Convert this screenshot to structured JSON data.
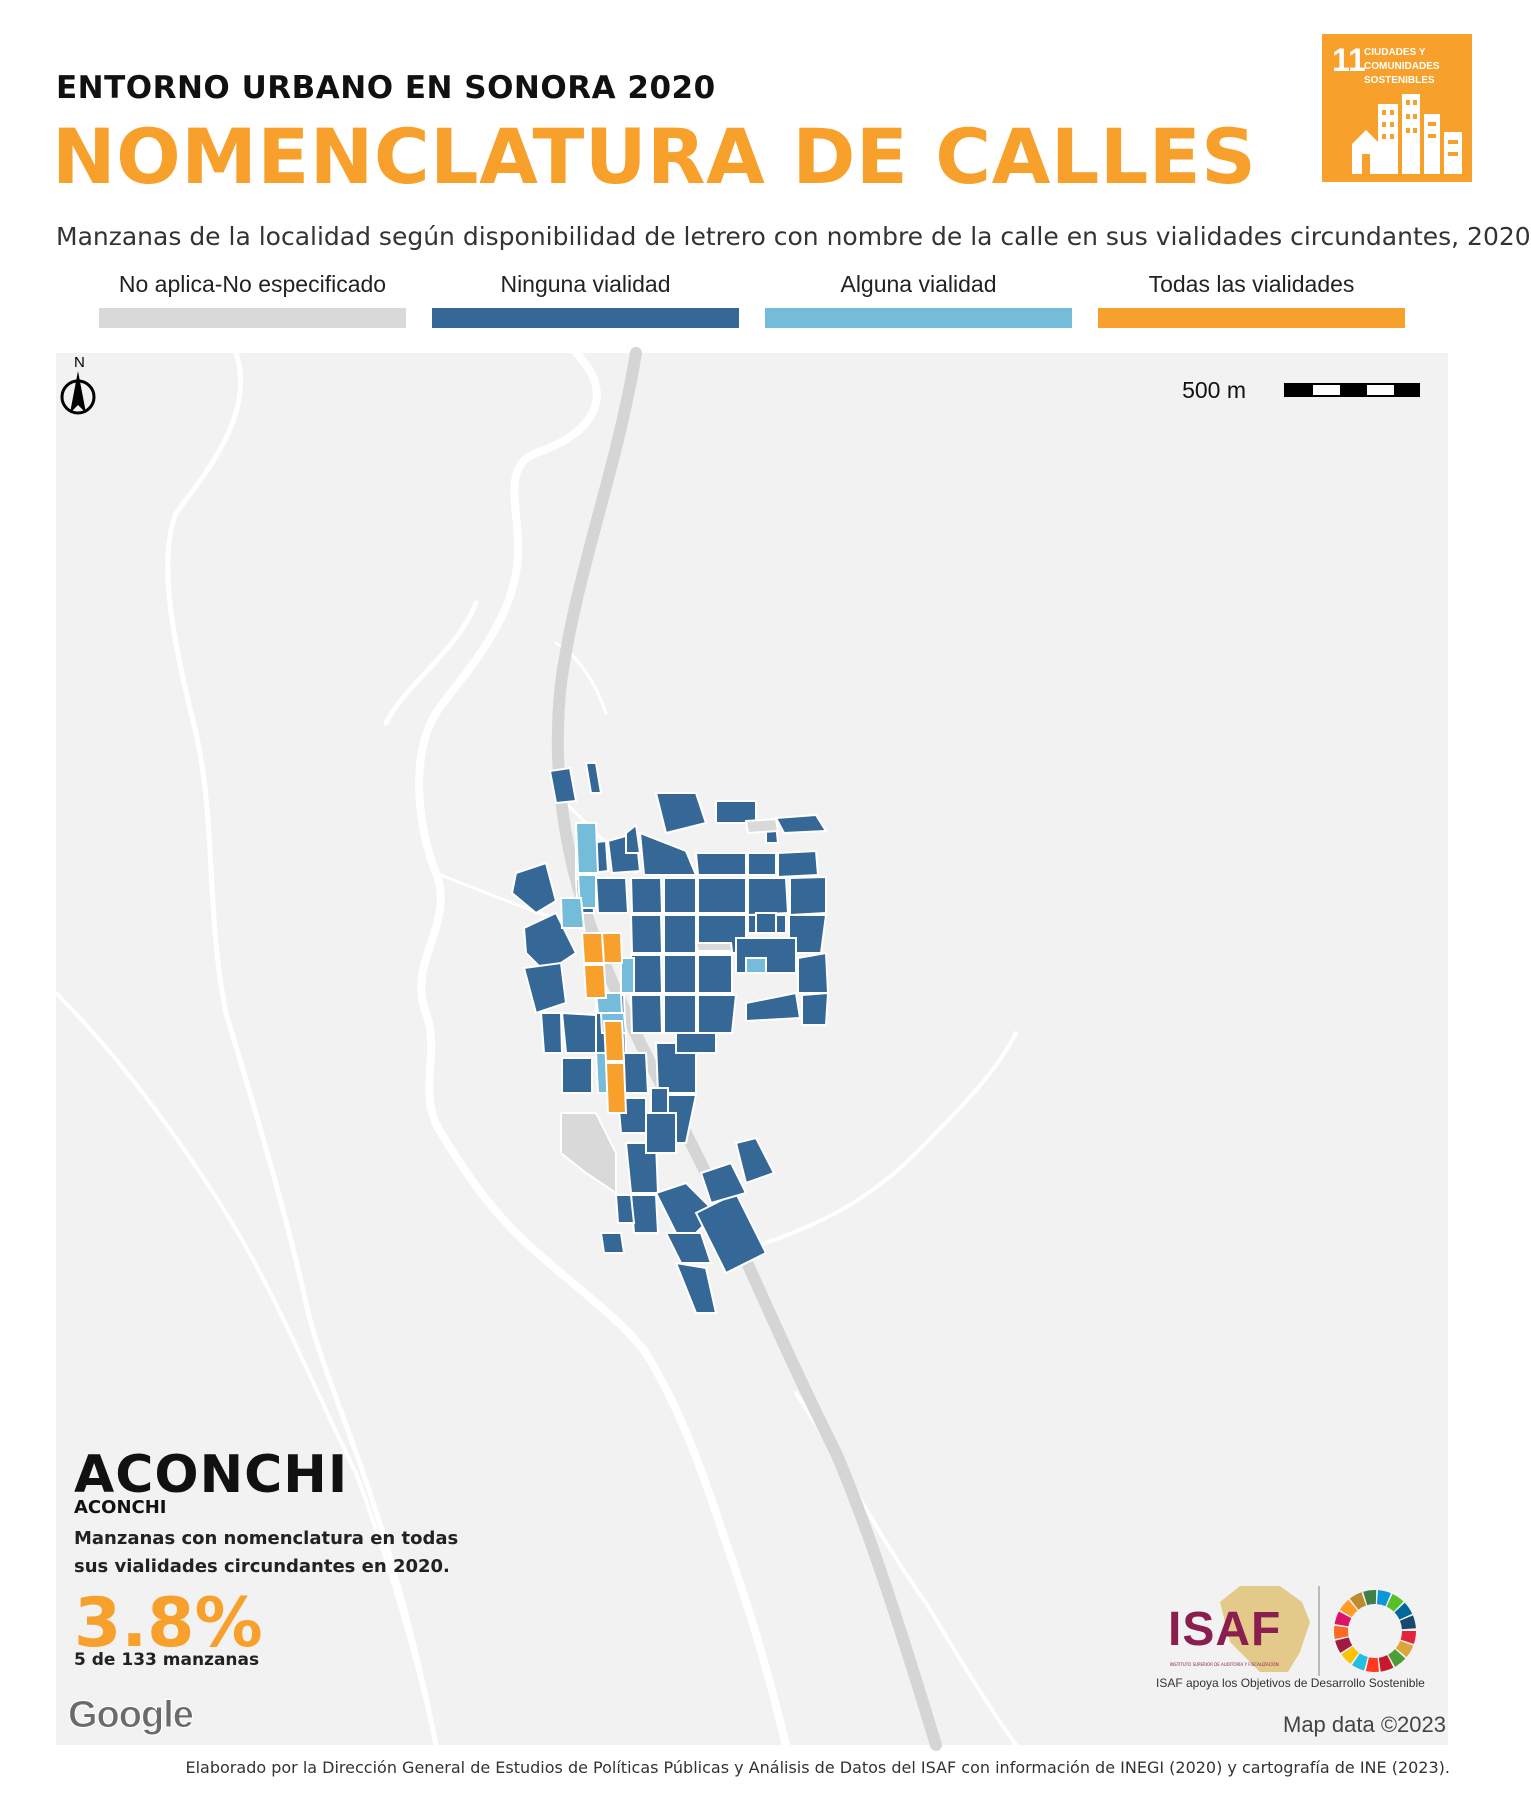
{
  "header": {
    "supertitle": "ENTORNO URBANO EN SONORA 2020",
    "title": "NOMENCLATURA DE CALLES",
    "subtitle": "Manzanas de la localidad según disponibilidad de letrero con nombre de la calle en sus vialidades circundantes, 2020"
  },
  "sdg_badge": {
    "number": "11",
    "text": "CIUDADES Y COMUNIDADES SOSTENIBLES",
    "color": "#f7a02b",
    "icon": "city-buildings-icon"
  },
  "legend": [
    {
      "label": "No aplica-No especificado",
      "color": "#d9d9d9"
    },
    {
      "label": "Ninguna vialidad",
      "color": "#356897"
    },
    {
      "label": "Alguna vialidad",
      "color": "#74bcd9"
    },
    {
      "label": "Todas las vialidades",
      "color": "#f7a02b"
    }
  ],
  "map": {
    "scale_label": "500 m",
    "north_label": "N",
    "attribution": "Map data ©2023",
    "provider_logo": "Google",
    "background": "#f2f2f2",
    "road_color": "#d5d5d5"
  },
  "locality": {
    "municipality": "ACONCHI",
    "locality": "ACONCHI",
    "description": "Manzanas con nomenclatura en todas sus vialidades circundantes en 2020.",
    "percent": "3.8%",
    "count": "5 de 133 manzanas"
  },
  "logos": {
    "isaf": "ISAF",
    "isaf_small": "INSTITUTO SUPERIOR DE AUDITORÍA Y FISCALIZACIÓN",
    "caption": "ISAF apoya los Objetivos de Desarrollo Sostenible"
  },
  "footer": "Elaborado por la Dirección General de Estudios de Políticas Públicas y Análisis de Datos del ISAF con información de INEGI (2020) y cartografía de INE (2023)."
}
